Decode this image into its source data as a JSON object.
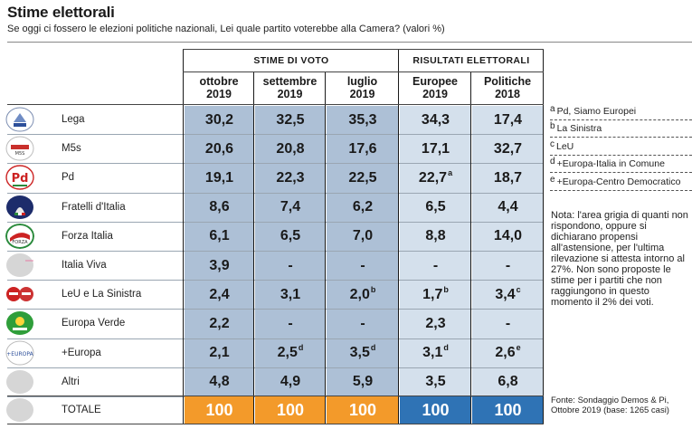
{
  "title": "Stime elettorali",
  "subtitle": "Se oggi ci fossero le elezioni politiche nazionali, Lei quale partito voterebbe alla Camera? (valori %)",
  "groups": {
    "stime": "STIME DI VOTO",
    "risultati": "RISULTATI ELETTORALI"
  },
  "columns": [
    {
      "line1": "ottobre",
      "line2": "2019"
    },
    {
      "line1": "settembre",
      "line2": "2019"
    },
    {
      "line1": "luglio",
      "line2": "2019"
    },
    {
      "line1": "Europee",
      "line2": "2019"
    },
    {
      "line1": "Politiche",
      "line2": "2018"
    }
  ],
  "rows": [
    {
      "party": "Lega",
      "logo": "lega-logo",
      "values": [
        "30,2",
        "32,5",
        "35,3",
        "34,3",
        "17,4"
      ],
      "notes": [
        "",
        "",
        "",
        "",
        ""
      ]
    },
    {
      "party": "M5s",
      "logo": "m5s-logo",
      "values": [
        "20,6",
        "20,8",
        "17,6",
        "17,1",
        "32,7"
      ],
      "notes": [
        "",
        "",
        "",
        "",
        ""
      ]
    },
    {
      "party": "Pd",
      "logo": "pd-logo",
      "values": [
        "19,1",
        "22,3",
        "22,5",
        "22,7",
        "18,7"
      ],
      "notes": [
        "",
        "",
        "",
        "a",
        ""
      ]
    },
    {
      "party": "Fratelli d'Italia",
      "logo": "fratelli-ditalia-logo",
      "values": [
        "8,6",
        "7,4",
        "6,2",
        "6,5",
        "4,4"
      ],
      "notes": [
        "",
        "",
        "",
        "",
        ""
      ]
    },
    {
      "party": "Forza Italia",
      "logo": "forza-italia-logo",
      "values": [
        "6,1",
        "6,5",
        "7,0",
        "8,8",
        "14,0"
      ],
      "notes": [
        "",
        "",
        "",
        "",
        ""
      ]
    },
    {
      "party": "Italia Viva",
      "logo": "italia-viva-logo",
      "values": [
        "3,9",
        "-",
        "-",
        "-",
        "-"
      ],
      "notes": [
        "",
        "",
        "",
        "",
        ""
      ]
    },
    {
      "party": "LeU e La Sinistra",
      "logo": "leu-la-sinistra-logo",
      "values": [
        "2,4",
        "3,1",
        "2,0",
        "1,7",
        "3,4"
      ],
      "notes": [
        "",
        "",
        "b",
        "b",
        "c"
      ]
    },
    {
      "party": "Europa Verde",
      "logo": "europa-verde-logo",
      "values": [
        "2,2",
        "-",
        "-",
        "2,3",
        "-"
      ],
      "notes": [
        "",
        "",
        "",
        "",
        ""
      ]
    },
    {
      "party": "+Europa",
      "logo": "piu-europa-logo",
      "values": [
        "2,1",
        "2,5",
        "3,5",
        "3,1",
        "2,6"
      ],
      "notes": [
        "",
        "d",
        "d",
        "d",
        "e"
      ]
    },
    {
      "party": "Altri",
      "logo": "altri-placeholder",
      "values": [
        "4,8",
        "4,9",
        "5,9",
        "3,5",
        "6,8"
      ],
      "notes": [
        "",
        "",
        "",
        "",
        ""
      ]
    }
  ],
  "total": {
    "label": "TOTALE",
    "values": [
      "100",
      "100",
      "100",
      "100",
      "100"
    ]
  },
  "footnotes": [
    {
      "letter": "a",
      "text": "Pd, Siamo Europei"
    },
    {
      "letter": "b",
      "text": "La Sinistra"
    },
    {
      "letter": "c",
      "text": "LeU"
    },
    {
      "letter": "d",
      "text": "+Europa-Italia in Comune"
    },
    {
      "letter": "e",
      "text": "+Europa-Centro Democratico"
    }
  ],
  "nota": "Nota: l'area grigia di quanti non rispondono, oppure si dichiarano propensi all'astensione, per l'ultima rilevazione si attesta intorno al 27%. Non sono proposte le stime per i partiti che non raggiungono in questo momento il 2% dei voti.",
  "fonte": "Fonte: Sondaggio Demos & Pi, Ottobre 2019 (base: 1265 casi)",
  "colors": {
    "stime_bg": "#adc0d6",
    "risultati_bg": "#d4e0ec",
    "total_stime": "#f39a2a",
    "total_risultati": "#2f73b5"
  }
}
